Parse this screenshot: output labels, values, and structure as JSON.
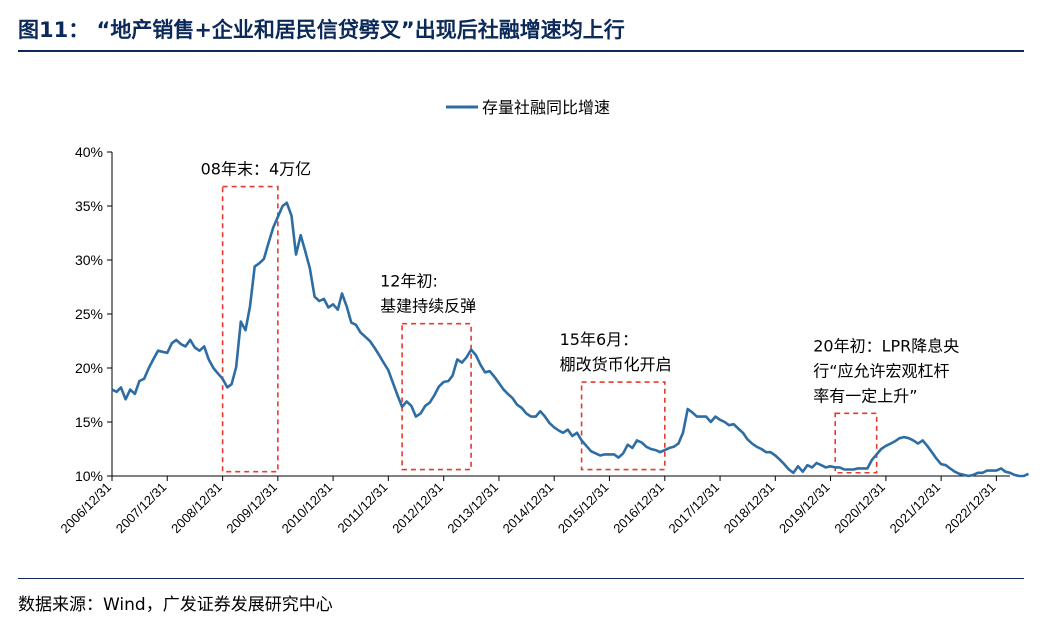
{
  "figure": {
    "title": "图11：  “地产销售+企业和居民信贷劈叉”出现后社融增速均上行",
    "source": "数据来源：Wind，广发证券发展研究中心"
  },
  "colors": {
    "series": "#2e6da4",
    "box": "#e8392e",
    "rule": "#0b2a5a"
  },
  "chart_data": {
    "type": "line",
    "title": "",
    "xlabel": "",
    "ylabel": "",
    "ylim": [
      0.1,
      0.4
    ],
    "yticks": [
      {
        "value": 0.1,
        "label": "10%"
      },
      {
        "value": 0.15,
        "label": "15%"
      },
      {
        "value": 0.2,
        "label": "20%"
      },
      {
        "value": 0.25,
        "label": "25%"
      },
      {
        "value": 0.3,
        "label": "30%"
      },
      {
        "value": 0.35,
        "label": "35%"
      },
      {
        "value": 0.4,
        "label": "40%"
      }
    ],
    "xlim": [
      "2006/12/31",
      "2023/03/31"
    ],
    "xticks": [
      "2006/12/31",
      "2007/12/31",
      "2008/12/31",
      "2009/12/31",
      "2010/12/31",
      "2011/12/31",
      "2012/12/31",
      "2013/12/31",
      "2014/12/31",
      "2015/12/31",
      "2016/12/31",
      "2017/12/31",
      "2018/12/31",
      "2019/12/31",
      "2020/12/31",
      "2021/12/31",
      "2022/12/31"
    ],
    "legend": {
      "position": "top-center"
    },
    "series": [
      {
        "name": "存量社融同比增速",
        "points": [
          [
            "2006/12/31",
            0.18
          ],
          [
            "2007/01/31",
            0.178
          ],
          [
            "2007/02/28",
            0.182
          ],
          [
            "2007/03/31",
            0.171
          ],
          [
            "2007/04/30",
            0.18
          ],
          [
            "2007/05/31",
            0.176
          ],
          [
            "2007/06/30",
            0.188
          ],
          [
            "2007/07/31",
            0.19
          ],
          [
            "2007/08/31",
            0.2
          ],
          [
            "2007/09/30",
            0.208
          ],
          [
            "2007/10/31",
            0.216
          ],
          [
            "2007/11/30",
            0.215
          ],
          [
            "2007/12/31",
            0.214
          ],
          [
            "2008/01/31",
            0.223
          ],
          [
            "2008/02/29",
            0.226
          ],
          [
            "2008/03/31",
            0.222
          ],
          [
            "2008/04/30",
            0.22
          ],
          [
            "2008/05/31",
            0.226
          ],
          [
            "2008/06/30",
            0.219
          ],
          [
            "2008/07/31",
            0.216
          ],
          [
            "2008/08/31",
            0.22
          ],
          [
            "2008/09/30",
            0.208
          ],
          [
            "2008/10/31",
            0.2
          ],
          [
            "2008/11/30",
            0.195
          ],
          [
            "2008/12/31",
            0.19
          ],
          [
            "2009/01/31",
            0.182
          ],
          [
            "2009/02/28",
            0.185
          ],
          [
            "2009/03/31",
            0.201
          ],
          [
            "2009/04/30",
            0.243
          ],
          [
            "2009/05/31",
            0.235
          ],
          [
            "2009/06/30",
            0.257
          ],
          [
            "2009/07/31",
            0.294
          ],
          [
            "2009/08/31",
            0.297
          ],
          [
            "2009/09/30",
            0.301
          ],
          [
            "2009/10/31",
            0.316
          ],
          [
            "2009/11/30",
            0.33
          ],
          [
            "2009/12/31",
            0.34
          ],
          [
            "2010/01/31",
            0.35
          ],
          [
            "2010/02/28",
            0.353
          ],
          [
            "2010/03/31",
            0.341
          ],
          [
            "2010/04/30",
            0.305
          ],
          [
            "2010/05/31",
            0.323
          ],
          [
            "2010/06/30",
            0.308
          ],
          [
            "2010/07/31",
            0.292
          ],
          [
            "2010/08/31",
            0.266
          ],
          [
            "2010/09/30",
            0.262
          ],
          [
            "2010/10/31",
            0.264
          ],
          [
            "2010/11/30",
            0.256
          ],
          [
            "2010/12/31",
            0.259
          ],
          [
            "2011/01/31",
            0.254
          ],
          [
            "2011/02/28",
            0.269
          ],
          [
            "2011/03/31",
            0.257
          ],
          [
            "2011/04/30",
            0.242
          ],
          [
            "2011/05/31",
            0.24
          ],
          [
            "2011/06/30",
            0.233
          ],
          [
            "2011/07/31",
            0.229
          ],
          [
            "2011/08/31",
            0.225
          ],
          [
            "2011/09/30",
            0.219
          ],
          [
            "2011/10/31",
            0.212
          ],
          [
            "2011/11/30",
            0.205
          ],
          [
            "2011/12/31",
            0.198
          ],
          [
            "2012/01/31",
            0.186
          ],
          [
            "2012/02/29",
            0.175
          ],
          [
            "2012/03/31",
            0.164
          ],
          [
            "2012/04/30",
            0.169
          ],
          [
            "2012/05/31",
            0.165
          ],
          [
            "2012/06/30",
            0.155
          ],
          [
            "2012/07/31",
            0.158
          ],
          [
            "2012/08/31",
            0.165
          ],
          [
            "2012/09/30",
            0.168
          ],
          [
            "2012/10/31",
            0.175
          ],
          [
            "2012/11/30",
            0.183
          ],
          [
            "2012/12/31",
            0.187
          ],
          [
            "2013/01/31",
            0.188
          ],
          [
            "2013/02/28",
            0.193
          ],
          [
            "2013/03/31",
            0.208
          ],
          [
            "2013/04/30",
            0.205
          ],
          [
            "2013/05/31",
            0.21
          ],
          [
            "2013/06/30",
            0.217
          ],
          [
            "2013/07/31",
            0.212
          ],
          [
            "2013/08/31",
            0.203
          ],
          [
            "2013/09/30",
            0.196
          ],
          [
            "2013/10/31",
            0.197
          ],
          [
            "2013/11/30",
            0.192
          ],
          [
            "2013/12/31",
            0.186
          ],
          [
            "2014/01/31",
            0.18
          ],
          [
            "2014/02/28",
            0.176
          ],
          [
            "2014/03/31",
            0.172
          ],
          [
            "2014/04/30",
            0.166
          ],
          [
            "2014/05/31",
            0.163
          ],
          [
            "2014/06/30",
            0.158
          ],
          [
            "2014/07/31",
            0.155
          ],
          [
            "2014/08/31",
            0.155
          ],
          [
            "2014/09/30",
            0.16
          ],
          [
            "2014/10/31",
            0.155
          ],
          [
            "2014/11/30",
            0.149
          ],
          [
            "2014/12/31",
            0.145
          ],
          [
            "2015/01/31",
            0.142
          ],
          [
            "2015/02/28",
            0.14
          ],
          [
            "2015/03/31",
            0.143
          ],
          [
            "2015/04/30",
            0.137
          ],
          [
            "2015/05/31",
            0.14
          ],
          [
            "2015/06/30",
            0.133
          ],
          [
            "2015/07/31",
            0.128
          ],
          [
            "2015/08/31",
            0.123
          ],
          [
            "2015/09/30",
            0.121
          ],
          [
            "2015/10/31",
            0.119
          ],
          [
            "2015/11/30",
            0.12
          ],
          [
            "2015/12/31",
            0.12
          ],
          [
            "2016/01/31",
            0.12
          ],
          [
            "2016/02/29",
            0.117
          ],
          [
            "2016/03/31",
            0.121
          ],
          [
            "2016/04/30",
            0.129
          ],
          [
            "2016/05/31",
            0.126
          ],
          [
            "2016/06/30",
            0.133
          ],
          [
            "2016/07/31",
            0.131
          ],
          [
            "2016/08/31",
            0.127
          ],
          [
            "2016/09/30",
            0.125
          ],
          [
            "2016/10/31",
            0.124
          ],
          [
            "2016/11/30",
            0.122
          ],
          [
            "2016/12/31",
            0.124
          ],
          [
            "2017/01/31",
            0.126
          ],
          [
            "2017/02/28",
            0.127
          ],
          [
            "2017/03/31",
            0.13
          ],
          [
            "2017/04/30",
            0.14
          ],
          [
            "2017/05/31",
            0.162
          ],
          [
            "2017/06/30",
            0.159
          ],
          [
            "2017/07/31",
            0.155
          ],
          [
            "2017/08/31",
            0.155
          ],
          [
            "2017/09/30",
            0.155
          ],
          [
            "2017/10/31",
            0.15
          ],
          [
            "2017/11/30",
            0.155
          ],
          [
            "2017/12/31",
            0.152
          ],
          [
            "2018/01/31",
            0.15
          ],
          [
            "2018/02/28",
            0.147
          ],
          [
            "2018/03/31",
            0.148
          ],
          [
            "2018/04/30",
            0.144
          ],
          [
            "2018/05/31",
            0.14
          ],
          [
            "2018/06/30",
            0.134
          ],
          [
            "2018/07/31",
            0.13
          ],
          [
            "2018/08/31",
            0.127
          ],
          [
            "2018/09/30",
            0.125
          ],
          [
            "2018/10/31",
            0.122
          ],
          [
            "2018/11/30",
            0.122
          ],
          [
            "2018/12/31",
            0.119
          ],
          [
            "2019/01/31",
            0.115
          ],
          [
            "2019/02/28",
            0.111
          ],
          [
            "2019/03/31",
            0.106
          ],
          [
            "2019/04/30",
            0.103
          ],
          [
            "2019/05/31",
            0.109
          ],
          [
            "2019/06/30",
            0.104
          ],
          [
            "2019/07/31",
            0.11
          ],
          [
            "2019/08/31",
            0.108
          ],
          [
            "2019/09/30",
            0.112
          ],
          [
            "2019/10/31",
            0.11
          ],
          [
            "2019/11/30",
            0.108
          ],
          [
            "2019/12/31",
            0.109
          ],
          [
            "2020/01/31",
            0.108
          ],
          [
            "2020/02/29",
            0.108
          ],
          [
            "2020/03/31",
            0.106
          ],
          [
            "2020/04/30",
            0.106
          ],
          [
            "2020/05/31",
            0.106
          ],
          [
            "2020/06/30",
            0.107
          ],
          [
            "2020/07/31",
            0.107
          ],
          [
            "2020/08/31",
            0.107
          ],
          [
            "2020/09/30",
            0.115
          ],
          [
            "2020/10/31",
            0.12
          ],
          [
            "2020/11/30",
            0.125
          ],
          [
            "2020/12/31",
            0.128
          ],
          [
            "2021/01/31",
            0.13
          ],
          [
            "2021/02/28",
            0.132
          ],
          [
            "2021/03/31",
            0.135
          ],
          [
            "2021/04/30",
            0.136
          ],
          [
            "2021/05/31",
            0.135
          ],
          [
            "2021/06/30",
            0.133
          ],
          [
            "2021/07/31",
            0.13
          ],
          [
            "2021/08/31",
            0.133
          ],
          [
            "2021/09/30",
            0.128
          ],
          [
            "2021/10/31",
            0.122
          ],
          [
            "2021/11/30",
            0.116
          ],
          [
            "2021/12/31",
            0.111
          ],
          [
            "2022/01/31",
            0.11
          ],
          [
            "2022/02/28",
            0.107
          ],
          [
            "2022/03/31",
            0.104
          ],
          [
            "2022/04/30",
            0.102
          ],
          [
            "2022/05/31",
            0.101
          ],
          [
            "2022/06/30",
            0.1
          ],
          [
            "2022/07/31",
            0.101
          ],
          [
            "2022/08/31",
            0.103
          ],
          [
            "2022/09/30",
            0.103
          ],
          [
            "2022/10/31",
            0.105
          ],
          [
            "2022/11/30",
            0.105
          ],
          [
            "2022/12/31",
            0.105
          ],
          [
            "2023/01/31",
            0.107
          ],
          [
            "2023/02/28",
            0.104
          ],
          [
            "2023/03/31",
            0.103
          ],
          [
            "2023/04/30",
            0.101
          ],
          [
            "2023/05/31",
            0.1
          ],
          [
            "2023/06/30",
            0.1
          ],
          [
            "2023/07/31",
            0.102
          ]
        ]
      }
    ],
    "annotations": [
      {
        "lines": [
          "08年末：4万亿"
        ],
        "box_x": [
          "2008/12/31",
          "2009/12/31"
        ],
        "box_y": [
          0.104,
          0.368
        ]
      },
      {
        "lines": [
          "12年初:",
          "基建持续反弹"
        ],
        "box_x": [
          "2012/03/31",
          "2013/06/30"
        ],
        "box_y": [
          0.106,
          0.241
        ]
      },
      {
        "lines": [
          "15年6月：",
          "棚改货币化开启"
        ],
        "box_x": [
          "2015/06/30",
          "2016/12/31"
        ],
        "box_y": [
          0.106,
          0.187
        ]
      },
      {
        "lines": [
          "20年初：LPR降息央",
          "行“应允许宏观杠杆",
          "率有一定上升”"
        ],
        "box_x": [
          "2020/01/31",
          "2020/10/31"
        ],
        "box_y": [
          0.103,
          0.158
        ]
      }
    ]
  }
}
